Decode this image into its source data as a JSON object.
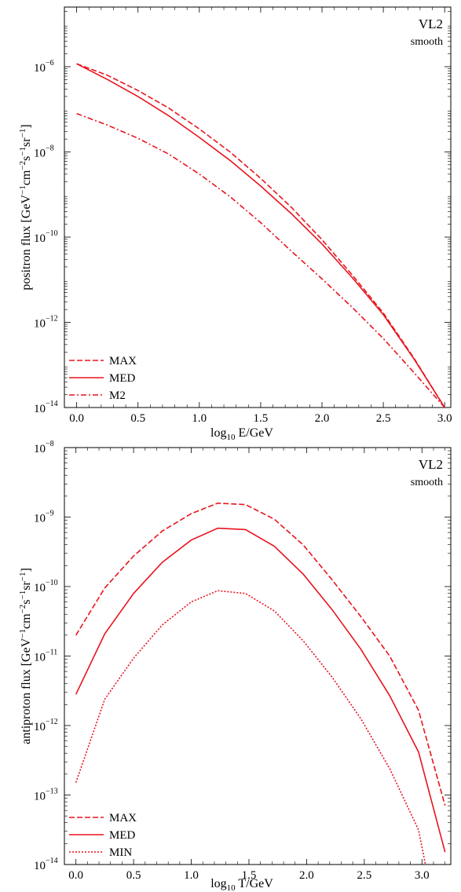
{
  "chart_data": [
    {
      "type": "line",
      "title": "",
      "annotation": {
        "line1": "VL2",
        "line2": "smooth"
      },
      "xlabel": {
        "prefix": "log",
        "sub": "10",
        "suffix": " E/GeV"
      },
      "ylabel": "positron flux [GeV⁻¹cm⁻²s⁻¹sr⁻¹]",
      "ylabel_parts": {
        "text": "positron flux [GeV",
        "u1": "−1",
        "t2": "cm",
        "u2": "−2",
        "t3": "s",
        "u3": "−1",
        "t4": "sr",
        "u4": "−1",
        "t5": "]"
      },
      "xlim": [
        -0.1,
        3.05
      ],
      "ylim_log10": [
        -14,
        -4.6
      ],
      "yscale": "log",
      "xticks": [
        0.0,
        0.5,
        1.0,
        1.5,
        2.0,
        2.5,
        3.0
      ],
      "xtick_labels": [
        "0.0",
        "0.5",
        "1.0",
        "1.5",
        "2.0",
        "2.5",
        "3.0"
      ],
      "yticks_log10": [
        -14,
        -12,
        -10,
        -8,
        -6
      ],
      "ytick_labels": [
        "10",
        "10",
        "10",
        "10",
        "10"
      ],
      "ytick_exponents": [
        "−14",
        "−12",
        "−10",
        "−8",
        "−6"
      ],
      "legend_position": "bottom-left",
      "series": [
        {
          "name": "MAX",
          "style": "dashed",
          "x": [
            0.0,
            0.25,
            0.5,
            0.75,
            1.0,
            1.25,
            1.5,
            1.75,
            2.0,
            2.25,
            2.5,
            2.75,
            3.0
          ],
          "y_log10": [
            -5.93,
            -6.2,
            -6.56,
            -6.97,
            -7.46,
            -8.0,
            -8.62,
            -9.3,
            -10.06,
            -10.9,
            -11.78,
            -12.84,
            -14.0
          ]
        },
        {
          "name": "MED",
          "style": "solid",
          "x": [
            0.0,
            0.25,
            0.5,
            0.75,
            1.0,
            1.25,
            1.5,
            1.75,
            2.0,
            2.25,
            2.5,
            2.75,
            3.0
          ],
          "y_log10": [
            -5.93,
            -6.3,
            -6.7,
            -7.15,
            -7.66,
            -8.2,
            -8.8,
            -9.45,
            -10.16,
            -10.96,
            -11.82,
            -12.86,
            -14.0
          ]
        },
        {
          "name": "M2",
          "style": "dashdot",
          "x": [
            0.0,
            0.25,
            0.5,
            0.75,
            1.0,
            1.25,
            1.5,
            1.75,
            2.0,
            2.25,
            2.5,
            2.75,
            3.0
          ],
          "y_log10": [
            -7.1,
            -7.37,
            -7.68,
            -8.05,
            -8.52,
            -9.05,
            -9.66,
            -10.33,
            -10.98,
            -11.66,
            -12.38,
            -13.18,
            -14.0
          ]
        }
      ],
      "color": "#e8141e"
    },
    {
      "type": "line",
      "title": "",
      "annotation": {
        "line1": "VL2",
        "line2": "smooth"
      },
      "xlabel": {
        "prefix": "log",
        "sub": "10",
        "suffix": " T/GeV"
      },
      "ylabel": "antiproton flux [GeV⁻¹cm⁻²s⁻¹sr⁻¹]",
      "ylabel_parts": {
        "text": "antiproton flux [GeV",
        "u1": "−1",
        "t2": "cm",
        "u2": "−2",
        "t3": "s",
        "u3": "−1",
        "t4": "sr",
        "u4": "−1",
        "t5": "]"
      },
      "xlim": [
        -0.1,
        3.25
      ],
      "ylim_log10": [
        -14,
        -8
      ],
      "yscale": "log",
      "xticks": [
        0.0,
        0.5,
        1.0,
        1.5,
        2.0,
        2.5,
        3.0
      ],
      "xtick_labels": [
        "0.0",
        "0.5",
        "1.0",
        "1.5",
        "2.0",
        "2.5",
        "3.0"
      ],
      "yticks_log10": [
        -14,
        -13,
        -12,
        -11,
        -10,
        -9,
        -8
      ],
      "ytick_labels": [
        "10",
        "10",
        "10",
        "10",
        "10",
        "10",
        "10"
      ],
      "ytick_exponents": [
        "−14",
        "−13",
        "−12",
        "−11",
        "−10",
        "−9",
        "−8"
      ],
      "legend_position": "bottom-left",
      "series": [
        {
          "name": "MAX",
          "style": "dashed",
          "x": [
            0.0,
            0.25,
            0.5,
            0.75,
            1.0,
            1.23,
            1.47,
            1.72,
            1.97,
            2.22,
            2.47,
            2.72,
            2.97,
            3.2
          ],
          "y_log10": [
            -10.7,
            -10.02,
            -9.56,
            -9.2,
            -8.95,
            -8.8,
            -8.82,
            -9.03,
            -9.4,
            -9.9,
            -10.43,
            -11.0,
            -11.78,
            -13.15
          ]
        },
        {
          "name": "MED",
          "style": "solid",
          "x": [
            0.0,
            0.25,
            0.5,
            0.75,
            1.0,
            1.23,
            1.47,
            1.72,
            1.97,
            2.22,
            2.47,
            2.72,
            2.97,
            3.2
          ],
          "y_log10": [
            -11.55,
            -10.68,
            -10.1,
            -9.65,
            -9.33,
            -9.16,
            -9.18,
            -9.42,
            -9.82,
            -10.33,
            -10.9,
            -11.57,
            -12.38,
            -13.82
          ]
        },
        {
          "name": "MIN",
          "style": "dotted",
          "x": [
            0.0,
            0.25,
            0.5,
            0.75,
            1.0,
            1.23,
            1.47,
            1.72,
            1.97,
            2.22,
            2.47,
            2.72,
            2.97,
            3.03
          ],
          "y_log10": [
            -12.82,
            -11.62,
            -11.03,
            -10.55,
            -10.22,
            -10.06,
            -10.1,
            -10.35,
            -10.78,
            -11.3,
            -11.9,
            -12.62,
            -13.5,
            -14.0
          ]
        }
      ],
      "color": "#e8141e"
    }
  ]
}
